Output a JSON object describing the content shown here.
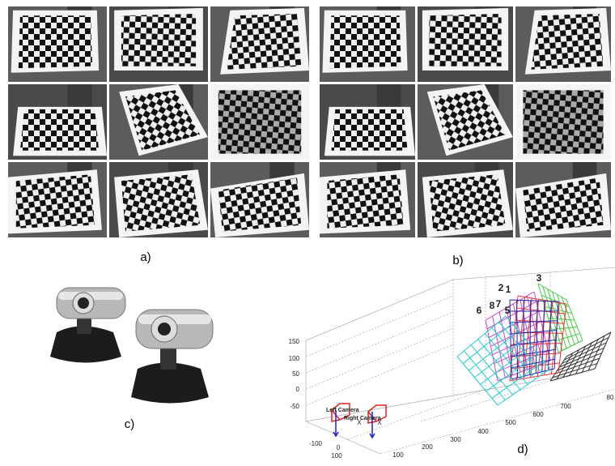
{
  "panels": [
    {
      "label": "a)"
    },
    {
      "label": "b)"
    },
    {
      "label": "c)"
    },
    {
      "label": "d)"
    }
  ],
  "plot": {
    "z_ticks": [
      "150",
      "100",
      "50",
      "0",
      "-50"
    ],
    "x_ticks": [
      "-100",
      "0",
      "100"
    ],
    "y_ticks": [
      "100",
      "200",
      "300",
      "400",
      "500",
      "600",
      "700",
      "80"
    ],
    "board_labels": [
      "2",
      "1",
      "3",
      "6",
      "8",
      "7",
      "5"
    ],
    "camera_labels": [
      "Left Camera",
      "Right Camera"
    ],
    "axis_markers": [
      "X",
      "X"
    ]
  }
}
